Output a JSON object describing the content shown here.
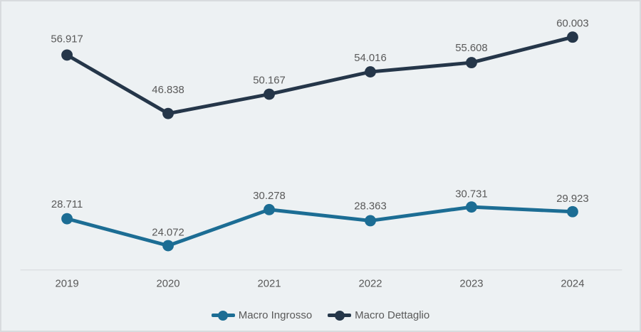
{
  "chart_data": {
    "type": "line",
    "title": "",
    "xlabel": "",
    "ylabel": "",
    "categories": [
      "2019",
      "2020",
      "2021",
      "2022",
      "2023",
      "2024"
    ],
    "series": [
      {
        "name": "Macro Ingrosso",
        "color": "#1c6d94",
        "values": [
          28711,
          24072,
          30278,
          28363,
          30731,
          29923
        ],
        "value_labels": [
          "28.711",
          "24.072",
          "30.278",
          "28.363",
          "30.731",
          "29.923"
        ]
      },
      {
        "name": "Macro Dettaglio",
        "color": "#253649",
        "values": [
          56917,
          46838,
          50167,
          54016,
          55608,
          60003
        ],
        "value_labels": [
          "56.917",
          "46.838",
          "50.167",
          "54.016",
          "55.608",
          "60.003"
        ]
      }
    ],
    "ylim": [
      20000,
      65000
    ],
    "grid": false,
    "legend_position": "bottom",
    "label_color": "#595959",
    "axis_line_color": "#d6d9dc",
    "background_color": "#edf1f3",
    "border_color": "#d8dbde"
  }
}
